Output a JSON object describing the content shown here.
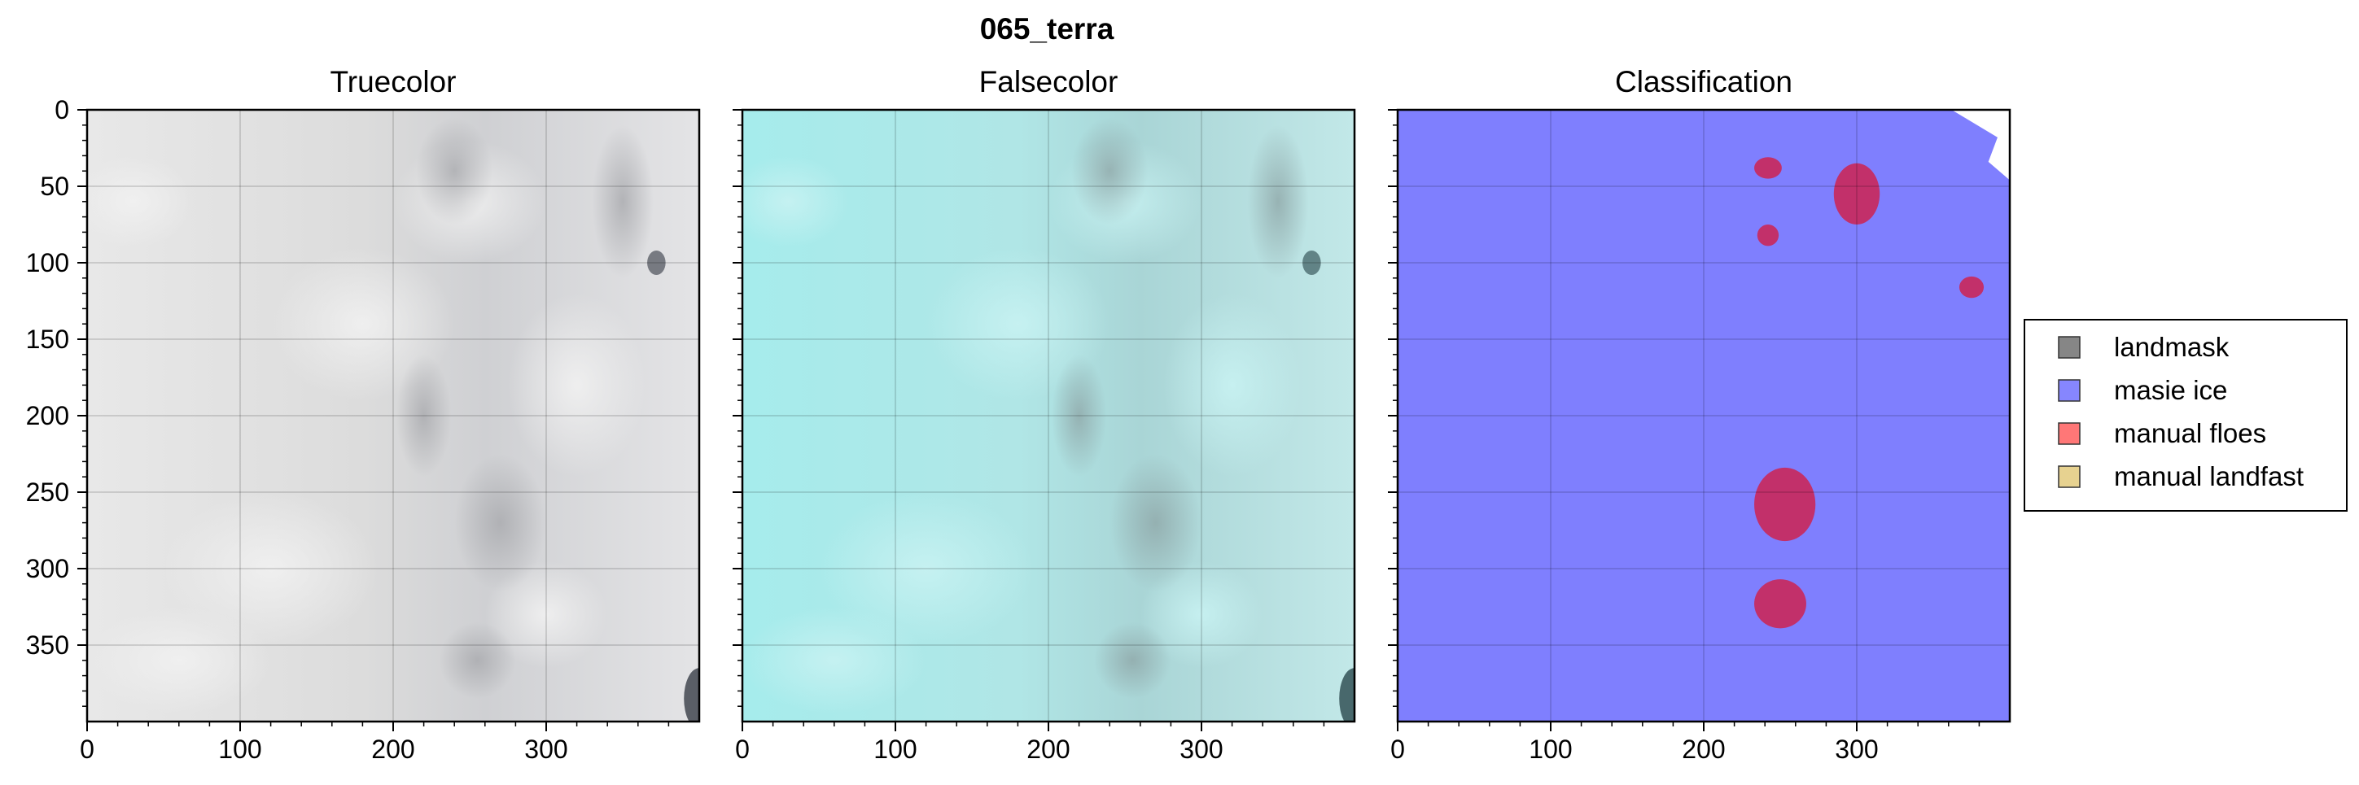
{
  "figure": {
    "suptitle": "065_terra"
  },
  "chart_data": [
    {
      "type": "image",
      "title": "Truecolor",
      "xlim": [
        0,
        400
      ],
      "ylim": [
        400,
        0
      ],
      "xticks": [
        0,
        100,
        200,
        300
      ],
      "yticks": [
        0,
        50,
        100,
        150,
        200,
        250,
        300,
        350
      ],
      "show_xticklabels": true,
      "show_yticklabels": true,
      "grid": true,
      "image": "truecolor"
    },
    {
      "type": "image",
      "title": "Falsecolor",
      "xlim": [
        0,
        400
      ],
      "ylim": [
        400,
        0
      ],
      "xticks": [
        0,
        100,
        200,
        300
      ],
      "yticks": [
        0,
        50,
        100,
        150,
        200,
        250,
        300,
        350
      ],
      "show_xticklabels": true,
      "show_yticklabels": false,
      "grid": true,
      "image": "falsecolor"
    },
    {
      "type": "image",
      "title": "Classification",
      "xlim": [
        0,
        400
      ],
      "ylim": [
        400,
        0
      ],
      "xticks": [
        0,
        100,
        200,
        300
      ],
      "yticks": [
        0,
        50,
        100,
        150,
        200,
        250,
        300,
        350
      ],
      "show_xticklabels": true,
      "show_yticklabels": false,
      "grid": true,
      "image": "classification",
      "legend": {
        "placement": "right",
        "entries": [
          {
            "label": "landmask",
            "color": "#808080"
          },
          {
            "label": "masie ice",
            "color": "#7f7ffe"
          },
          {
            "label": "manual floes",
            "color": "#ff7070"
          },
          {
            "label": "manual landfast",
            "color": "#e6d08a"
          }
        ]
      },
      "floes_color": "#c2306a",
      "floes": [
        {
          "cx": 242,
          "cy": 38,
          "rx": 9,
          "ry": 7
        },
        {
          "cx": 300,
          "cy": 55,
          "rx": 15,
          "ry": 20
        },
        {
          "cx": 242,
          "cy": 82,
          "rx": 7,
          "ry": 7
        },
        {
          "cx": 375,
          "cy": 116,
          "rx": 8,
          "ry": 7
        },
        {
          "cx": 253,
          "cy": 258,
          "rx": 20,
          "ry": 24
        },
        {
          "cx": 250,
          "cy": 323,
          "rx": 17,
          "ry": 16
        }
      ],
      "blank_region": [
        [
          362,
          0
        ],
        [
          400,
          0
        ],
        [
          400,
          46
        ],
        [
          386,
          34
        ],
        [
          392,
          18
        ]
      ]
    }
  ]
}
